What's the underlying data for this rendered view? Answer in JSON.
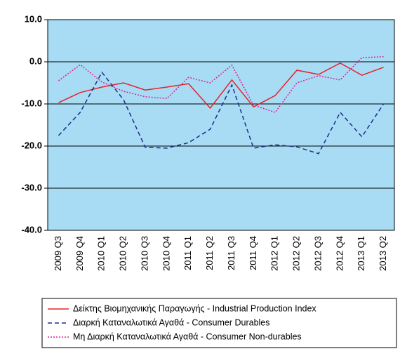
{
  "chart_data": {
    "type": "line",
    "categories": [
      "2009 Q3",
      "2009 Q4",
      "2010 Q1",
      "2010 Q2",
      "2010 Q3",
      "2010 Q4",
      "2011 Q1",
      "2011 Q2",
      "2011 Q3",
      "2011 Q4",
      "2012 Q1",
      "2012 Q2",
      "2012 Q3",
      "2012 Q4",
      "2013 Q1",
      "2013 Q2"
    ],
    "series": [
      {
        "name": "Δείκτης Βιομηχανικής Παραγωγής - Industrial Production Index",
        "color": "#e8202a",
        "dash": "solid",
        "values": [
          -9.7,
          -7.3,
          -6.0,
          -5.0,
          -6.7,
          -6.0,
          -5.2,
          -11.0,
          -4.3,
          -10.7,
          -8.0,
          -2.0,
          -3.0,
          -0.3,
          -3.2,
          -1.3
        ]
      },
      {
        "name": "Διαρκή Καταναλωτικά Αγαθά - Consumer Durables",
        "color": "#1f2d8a",
        "dash": "dashed",
        "values": [
          -17.5,
          -12.0,
          -2.5,
          -9.0,
          -20.3,
          -20.5,
          -19.2,
          -16.0,
          -5.5,
          -20.5,
          -19.7,
          -20.2,
          -21.8,
          -12.0,
          -17.8,
          -10.0
        ]
      },
      {
        "name": "Μη Διαρκή Καταναλωτικά Αγαθά - Consumer Non-durables",
        "color": "#e0209a",
        "dash": "dotted",
        "values": [
          -4.5,
          -0.7,
          -4.8,
          -7.0,
          -8.3,
          -8.7,
          -3.7,
          -5.0,
          -0.8,
          -10.3,
          -12.0,
          -5.0,
          -3.3,
          -4.3,
          1.0,
          1.2
        ]
      }
    ],
    "ylim": [
      -40,
      10
    ],
    "yticks": [
      {
        "value": -40,
        "label": "-40.0"
      },
      {
        "value": -30,
        "label": "-30.0"
      },
      {
        "value": -20,
        "label": "-20.0"
      },
      {
        "value": -10,
        "label": "-10.0"
      },
      {
        "value": 0,
        "label": "0.0"
      },
      {
        "value": 10,
        "label": "10.0"
      }
    ],
    "grid": true,
    "plot_background": "#a8dcf4",
    "legend": "bottom"
  }
}
